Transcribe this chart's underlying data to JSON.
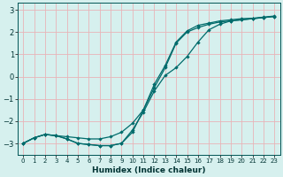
{
  "xlabel": "Humidex (Indice chaleur)",
  "xlim": [
    -0.5,
    23.5
  ],
  "ylim": [
    -3.5,
    3.3
  ],
  "yticks": [
    -3,
    -2,
    -1,
    0,
    1,
    2,
    3
  ],
  "xticks": [
    0,
    1,
    2,
    3,
    4,
    5,
    6,
    7,
    8,
    9,
    10,
    11,
    12,
    13,
    14,
    15,
    16,
    17,
    18,
    19,
    20,
    21,
    22,
    23
  ],
  "bg_color": "#d6f0ee",
  "line_color": "#006b6b",
  "grid_color": "#e8b4b8",
  "line1_x": [
    0,
    1,
    2,
    3,
    4,
    5,
    6,
    7,
    8,
    9,
    10,
    11,
    12,
    13,
    14,
    15,
    16,
    17,
    18,
    19,
    20,
    21,
    22,
    23
  ],
  "line1_y": [
    -3.0,
    -2.75,
    -2.6,
    -2.65,
    -2.7,
    -2.75,
    -2.8,
    -2.8,
    -2.7,
    -2.5,
    -2.1,
    -1.5,
    -0.5,
    0.4,
    1.5,
    2.0,
    2.2,
    2.35,
    2.45,
    2.5,
    2.55,
    2.6,
    2.65,
    2.7
  ],
  "line2_x": [
    0,
    1,
    2,
    3,
    4,
    5,
    6,
    7,
    8,
    9,
    10,
    11,
    12,
    13,
    14,
    15,
    16,
    17,
    18,
    19,
    20,
    21,
    22,
    23
  ],
  "line2_y": [
    -3.0,
    -2.75,
    -2.6,
    -2.65,
    -2.8,
    -3.0,
    -3.05,
    -3.1,
    -3.1,
    -3.0,
    -2.4,
    -1.6,
    -0.65,
    0.05,
    0.4,
    0.9,
    1.55,
    2.1,
    2.35,
    2.5,
    2.55,
    2.6,
    2.65,
    2.7
  ],
  "line3_x": [
    0,
    1,
    2,
    3,
    4,
    5,
    6,
    7,
    8,
    9,
    10,
    11,
    12,
    13,
    14,
    15,
    16,
    17,
    18,
    19,
    20,
    21,
    22,
    23
  ],
  "line3_y": [
    -3.0,
    -2.75,
    -2.6,
    -2.65,
    -2.8,
    -3.0,
    -3.05,
    -3.1,
    -3.1,
    -3.0,
    -2.5,
    -1.5,
    -0.35,
    0.5,
    1.55,
    2.05,
    2.3,
    2.4,
    2.5,
    2.55,
    2.6,
    2.62,
    2.67,
    2.72
  ]
}
